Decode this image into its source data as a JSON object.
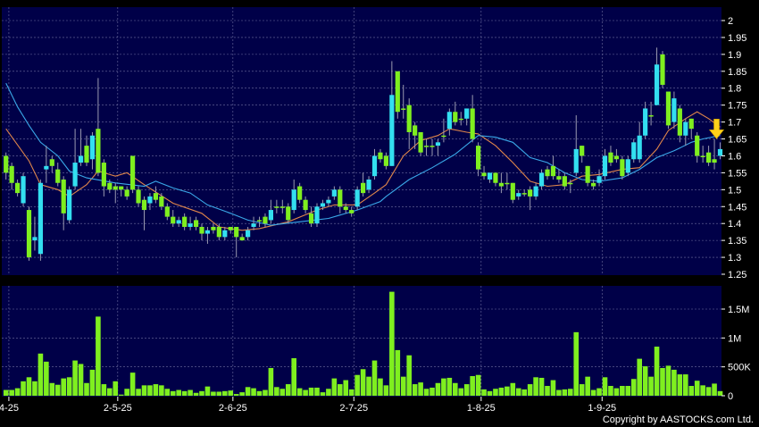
{
  "chart_data": {
    "type": "candlestick",
    "colors": {
      "background": "#000048",
      "up": "#33dff0",
      "down": "#7fef1f",
      "volume": "#7fef1f",
      "ma_short": "#e0864a",
      "ma_long": "#3aa8e8",
      "grid": "#6f6fa0",
      "arrow": "#ffd21a"
    },
    "price_axis": {
      "ylim": [
        1.25,
        2.0
      ],
      "ticks": [
        "2",
        "1.95",
        "1.9",
        "1.85",
        "1.8",
        "1.75",
        "1.7",
        "1.65",
        "1.6",
        "1.55",
        "1.5",
        "1.45",
        "1.4",
        "1.35",
        "1.3",
        "1.25"
      ],
      "side": "right",
      "grid": true
    },
    "volume_axis": {
      "ylim": [
        0,
        1900
      ],
      "unit": "K",
      "ticks": [
        {
          "value": 0,
          "label": "0"
        },
        {
          "value": 500,
          "label": "500K"
        },
        {
          "value": 1000,
          "label": "1M"
        },
        {
          "value": 1500,
          "label": "1.5M"
        }
      ],
      "side": "right",
      "grid": true
    },
    "x_ticks": [
      {
        "label": "4-25",
        "index": 0.5
      },
      {
        "label": "2-5-25",
        "index": 19.4
      },
      {
        "label": "2-6-25",
        "index": 39.4
      },
      {
        "label": "2-7-25",
        "index": 60.4
      },
      {
        "label": "1-8-25",
        "index": 82.5
      },
      {
        "label": "1-9-25",
        "index": 103.5
      }
    ],
    "ohlc": [
      [
        1.6,
        1.61,
        1.53,
        1.55
      ],
      [
        1.57,
        1.58,
        1.5,
        1.52
      ],
      [
        1.52,
        1.53,
        1.48,
        1.49
      ],
      [
        1.46,
        1.55,
        1.45,
        1.54
      ],
      [
        1.44,
        1.45,
        1.29,
        1.3
      ],
      [
        1.35,
        1.42,
        1.32,
        1.36
      ],
      [
        1.31,
        1.53,
        1.29,
        1.52
      ],
      [
        1.56,
        1.63,
        1.52,
        1.57
      ],
      [
        1.59,
        1.6,
        1.55,
        1.57
      ],
      [
        1.56,
        1.58,
        1.51,
        1.52
      ],
      [
        1.53,
        1.54,
        1.38,
        1.43
      ],
      [
        1.41,
        1.51,
        1.4,
        1.5
      ],
      [
        1.51,
        1.68,
        1.5,
        1.58
      ],
      [
        1.58,
        1.68,
        1.57,
        1.6
      ],
      [
        1.63,
        1.66,
        1.57,
        1.58
      ],
      [
        1.59,
        1.67,
        1.56,
        1.66
      ],
      [
        1.68,
        1.83,
        1.54,
        1.55
      ],
      [
        1.58,
        1.59,
        1.48,
        1.51
      ],
      [
        1.52,
        1.53,
        1.49,
        1.5
      ],
      [
        1.51,
        1.52,
        1.46,
        1.5
      ],
      [
        1.51,
        1.51,
        1.48,
        1.5
      ],
      [
        1.5,
        1.51,
        1.47,
        1.48
      ],
      [
        1.6,
        1.6,
        1.49,
        1.5
      ],
      [
        1.5,
        1.51,
        1.45,
        1.46
      ],
      [
        1.47,
        1.48,
        1.38,
        1.44
      ],
      [
        1.46,
        1.49,
        1.44,
        1.48
      ],
      [
        1.49,
        1.51,
        1.46,
        1.47
      ],
      [
        1.48,
        1.49,
        1.44,
        1.45
      ],
      [
        1.45,
        1.46,
        1.41,
        1.42
      ],
      [
        1.42,
        1.44,
        1.39,
        1.4
      ],
      [
        1.4,
        1.42,
        1.39,
        1.41
      ],
      [
        1.42,
        1.43,
        1.38,
        1.39
      ],
      [
        1.39,
        1.42,
        1.38,
        1.4
      ],
      [
        1.41,
        1.42,
        1.38,
        1.39
      ],
      [
        1.39,
        1.4,
        1.35,
        1.37
      ],
      [
        1.37,
        1.39,
        1.34,
        1.38
      ],
      [
        1.39,
        1.4,
        1.37,
        1.38
      ],
      [
        1.39,
        1.4,
        1.35,
        1.36
      ],
      [
        1.36,
        1.39,
        1.35,
        1.38
      ],
      [
        1.39,
        1.39,
        1.37,
        1.38
      ],
      [
        1.39,
        1.39,
        1.3,
        1.36
      ],
      [
        1.36,
        1.37,
        1.35,
        1.35
      ],
      [
        1.36,
        1.39,
        1.35,
        1.38
      ],
      [
        1.39,
        1.42,
        1.38,
        1.4
      ],
      [
        1.41,
        1.42,
        1.39,
        1.41
      ],
      [
        1.42,
        1.43,
        1.39,
        1.4
      ],
      [
        1.41,
        1.47,
        1.4,
        1.44
      ],
      [
        1.45,
        1.47,
        1.43,
        1.45
      ],
      [
        1.45,
        1.47,
        1.43,
        1.45
      ],
      [
        1.45,
        1.46,
        1.4,
        1.41
      ],
      [
        1.44,
        1.53,
        1.43,
        1.5
      ],
      [
        1.51,
        1.52,
        1.46,
        1.47
      ],
      [
        1.47,
        1.48,
        1.43,
        1.44
      ],
      [
        1.43,
        1.45,
        1.39,
        1.4
      ],
      [
        1.4,
        1.46,
        1.39,
        1.45
      ],
      [
        1.45,
        1.47,
        1.44,
        1.46
      ],
      [
        1.46,
        1.48,
        1.45,
        1.47
      ],
      [
        1.48,
        1.51,
        1.47,
        1.5
      ],
      [
        1.5,
        1.51,
        1.43,
        1.45
      ],
      [
        1.45,
        1.46,
        1.43,
        1.44
      ],
      [
        1.44,
        1.45,
        1.42,
        1.43
      ],
      [
        1.45,
        1.51,
        1.44,
        1.5
      ],
      [
        1.52,
        1.55,
        1.48,
        1.49
      ],
      [
        1.5,
        1.54,
        1.49,
        1.53
      ],
      [
        1.54,
        1.62,
        1.53,
        1.6
      ],
      [
        1.61,
        1.62,
        1.58,
        1.59
      ],
      [
        1.6,
        1.61,
        1.56,
        1.57
      ],
      [
        1.57,
        1.88,
        1.57,
        1.78
      ],
      [
        1.85,
        1.85,
        1.71,
        1.73
      ],
      [
        1.74,
        1.81,
        1.71,
        1.74
      ],
      [
        1.75,
        1.77,
        1.62,
        1.67
      ],
      [
        1.69,
        1.7,
        1.62,
        1.66
      ],
      [
        1.67,
        1.67,
        1.6,
        1.61
      ],
      [
        1.63,
        1.65,
        1.6,
        1.63
      ],
      [
        1.63,
        1.65,
        1.6,
        1.63
      ],
      [
        1.63,
        1.65,
        1.6,
        1.64
      ],
      [
        1.66,
        1.71,
        1.64,
        1.66
      ],
      [
        1.68,
        1.74,
        1.66,
        1.73
      ],
      [
        1.73,
        1.76,
        1.69,
        1.7
      ],
      [
        1.71,
        1.73,
        1.69,
        1.71
      ],
      [
        1.71,
        1.74,
        1.69,
        1.74
      ],
      [
        1.74,
        1.78,
        1.64,
        1.65
      ],
      [
        1.63,
        1.64,
        1.54,
        1.56
      ],
      [
        1.55,
        1.57,
        1.53,
        1.54
      ],
      [
        1.53,
        1.55,
        1.52,
        1.55
      ],
      [
        1.55,
        1.55,
        1.51,
        1.52
      ],
      [
        1.52,
        1.55,
        1.49,
        1.51
      ],
      [
        1.52,
        1.55,
        1.5,
        1.52
      ],
      [
        1.52,
        1.52,
        1.46,
        1.47
      ],
      [
        1.48,
        1.5,
        1.47,
        1.49
      ],
      [
        1.49,
        1.5,
        1.48,
        1.49
      ],
      [
        1.5,
        1.51,
        1.44,
        1.48
      ],
      [
        1.48,
        1.52,
        1.47,
        1.51
      ],
      [
        1.51,
        1.56,
        1.5,
        1.55
      ],
      [
        1.56,
        1.57,
        1.53,
        1.54
      ],
      [
        1.57,
        1.6,
        1.53,
        1.54
      ],
      [
        1.54,
        1.56,
        1.52,
        1.53
      ],
      [
        1.54,
        1.55,
        1.5,
        1.51
      ],
      [
        1.52,
        1.53,
        1.49,
        1.52
      ],
      [
        1.55,
        1.72,
        1.54,
        1.62
      ],
      [
        1.63,
        1.63,
        1.58,
        1.6
      ],
      [
        1.57,
        1.57,
        1.51,
        1.52
      ],
      [
        1.52,
        1.53,
        1.5,
        1.51
      ],
      [
        1.52,
        1.56,
        1.51,
        1.54
      ],
      [
        1.54,
        1.62,
        1.53,
        1.6
      ],
      [
        1.61,
        1.63,
        1.57,
        1.58
      ],
      [
        1.6,
        1.62,
        1.58,
        1.59
      ],
      [
        1.59,
        1.6,
        1.53,
        1.54
      ],
      [
        1.55,
        1.6,
        1.54,
        1.59
      ],
      [
        1.59,
        1.65,
        1.58,
        1.64
      ],
      [
        1.59,
        1.7,
        1.58,
        1.66
      ],
      [
        1.66,
        1.76,
        1.65,
        1.74
      ],
      [
        1.72,
        1.76,
        1.69,
        1.72
      ],
      [
        1.75,
        1.92,
        1.75,
        1.87
      ],
      [
        1.9,
        1.91,
        1.8,
        1.81
      ],
      [
        1.79,
        1.79,
        1.68,
        1.69
      ],
      [
        1.7,
        1.79,
        1.68,
        1.77
      ],
      [
        1.74,
        1.75,
        1.64,
        1.66
      ],
      [
        1.66,
        1.71,
        1.63,
        1.7
      ],
      [
        1.71,
        1.71,
        1.65,
        1.68
      ],
      [
        1.66,
        1.67,
        1.58,
        1.6
      ],
      [
        1.6,
        1.63,
        1.58,
        1.6
      ],
      [
        1.61,
        1.63,
        1.57,
        1.58
      ],
      [
        1.59,
        1.65,
        1.56,
        1.58
      ],
      [
        1.6,
        1.64,
        1.59,
        1.62
      ]
    ],
    "volume": [
      100,
      100,
      130,
      250,
      320,
      250,
      730,
      590,
      220,
      190,
      300,
      320,
      610,
      550,
      220,
      450,
      1370,
      200,
      130,
      250,
      20,
      120,
      400,
      120,
      180,
      180,
      200,
      180,
      120,
      80,
      100,
      80,
      100,
      50,
      80,
      160,
      70,
      70,
      80,
      90,
      30,
      60,
      150,
      130,
      80,
      100,
      480,
      150,
      120,
      200,
      650,
      130,
      100,
      140,
      140,
      60,
      120,
      300,
      200,
      270,
      110,
      360,
      460,
      330,
      610,
      300,
      180,
      1800,
      790,
      330,
      700,
      200,
      230,
      120,
      140,
      220,
      300,
      310,
      220,
      130,
      200,
      340,
      360,
      110,
      80,
      120,
      140,
      160,
      220,
      130,
      110,
      200,
      320,
      310,
      170,
      270,
      100,
      110,
      120,
      1100,
      200,
      330,
      100,
      130,
      320,
      170,
      130,
      170,
      170,
      290,
      640,
      510,
      330,
      850,
      480,
      520,
      450,
      370,
      370,
      170,
      260,
      180,
      150,
      210,
      80
    ],
    "moving_averages": [
      {
        "line": "short",
        "points": [
          [
            1,
            1.68
          ],
          [
            5,
            1.585
          ],
          [
            7,
            1.515
          ],
          [
            10,
            1.5
          ],
          [
            12,
            1.48
          ],
          [
            15,
            1.515
          ],
          [
            17,
            1.555
          ],
          [
            20,
            1.54
          ],
          [
            22,
            1.55
          ],
          [
            25,
            1.515
          ],
          [
            30,
            1.46
          ],
          [
            35,
            1.43
          ],
          [
            38,
            1.39
          ],
          [
            42,
            1.38
          ],
          [
            45,
            1.385
          ],
          [
            50,
            1.405
          ],
          [
            55,
            1.44
          ],
          [
            58,
            1.455
          ],
          [
            62,
            1.455
          ],
          [
            65,
            1.49
          ],
          [
            67,
            1.515
          ],
          [
            70,
            1.6
          ],
          [
            73,
            1.645
          ],
          [
            76,
            1.66
          ],
          [
            78,
            1.68
          ],
          [
            81,
            1.67
          ],
          [
            83,
            1.665
          ],
          [
            86,
            1.63
          ],
          [
            89,
            1.58
          ],
          [
            92,
            1.525
          ],
          [
            95,
            1.51
          ],
          [
            98,
            1.515
          ],
          [
            101,
            1.54
          ],
          [
            104,
            1.545
          ],
          [
            108,
            1.56
          ],
          [
            111,
            1.565
          ],
          [
            114,
            1.62
          ],
          [
            116,
            1.675
          ],
          [
            119,
            1.71
          ],
          [
            121,
            1.73
          ],
          [
            123,
            1.71
          ],
          [
            125,
            1.685
          ]
        ]
      },
      {
        "line": "long",
        "points": [
          [
            1,
            1.815
          ],
          [
            3,
            1.745
          ],
          [
            5,
            1.69
          ],
          [
            7,
            1.64
          ],
          [
            10,
            1.6
          ],
          [
            12,
            1.555
          ],
          [
            15,
            1.535
          ],
          [
            20,
            1.52
          ],
          [
            25,
            1.51
          ],
          [
            27,
            1.525
          ],
          [
            30,
            1.505
          ],
          [
            33,
            1.49
          ],
          [
            36,
            1.455
          ],
          [
            40,
            1.43
          ],
          [
            43,
            1.41
          ],
          [
            47,
            1.395
          ],
          [
            52,
            1.405
          ],
          [
            57,
            1.415
          ],
          [
            62,
            1.44
          ],
          [
            66,
            1.465
          ],
          [
            67,
            1.48
          ],
          [
            71,
            1.53
          ],
          [
            75,
            1.565
          ],
          [
            79,
            1.605
          ],
          [
            83,
            1.66
          ],
          [
            86,
            1.655
          ],
          [
            89,
            1.64
          ],
          [
            92,
            1.595
          ],
          [
            95,
            1.58
          ],
          [
            98,
            1.55
          ],
          [
            101,
            1.53
          ],
          [
            104,
            1.525
          ],
          [
            108,
            1.535
          ],
          [
            111,
            1.56
          ],
          [
            114,
            1.595
          ],
          [
            117,
            1.615
          ],
          [
            120,
            1.64
          ],
          [
            122,
            1.65
          ],
          [
            125,
            1.66
          ]
        ]
      }
    ],
    "annotation": {
      "type": "down-arrow",
      "candle": 125
    }
  },
  "footer": {
    "copyright": "Copyright by AASTOCKS.com Ltd."
  }
}
